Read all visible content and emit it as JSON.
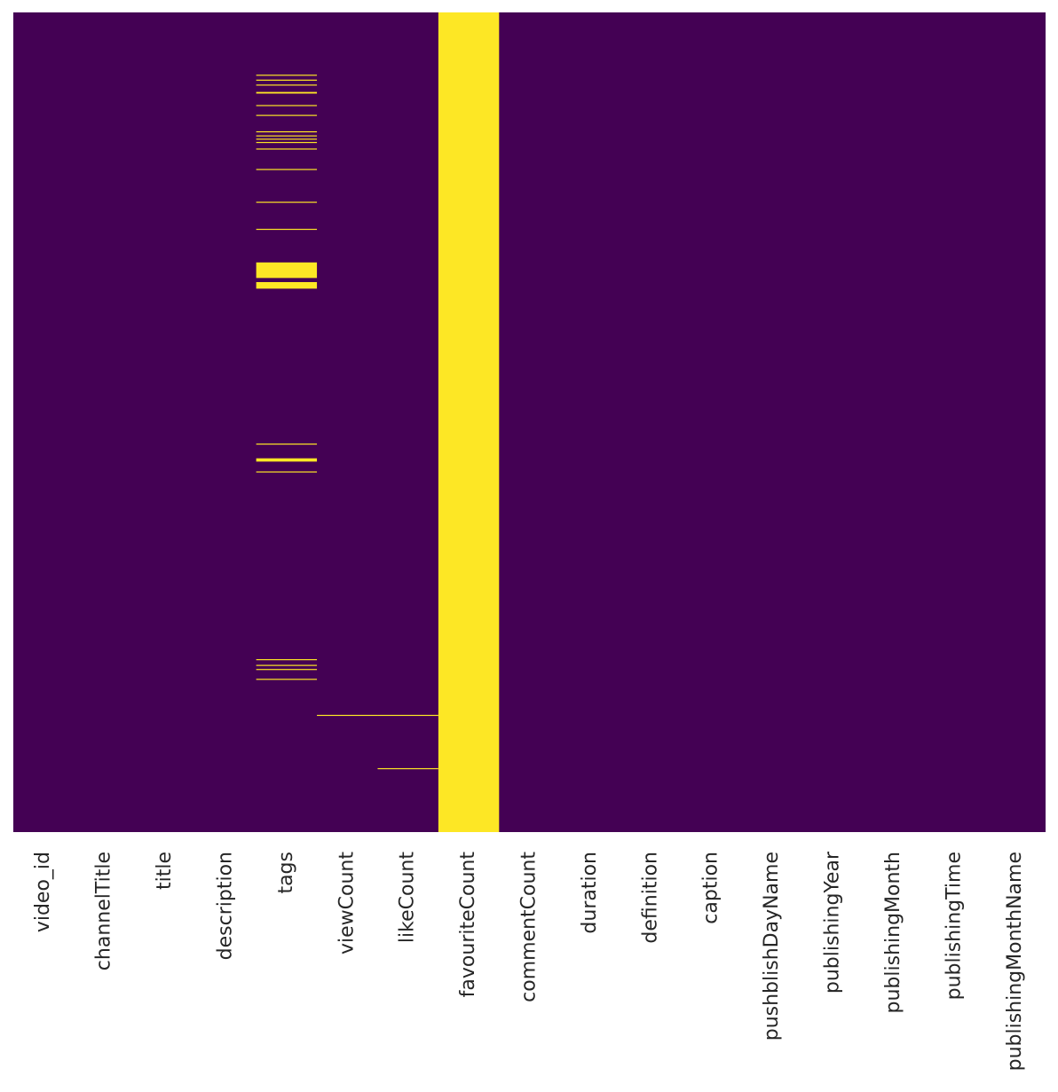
{
  "chart_data": {
    "type": "heatmap",
    "title": "",
    "xlabel": "",
    "ylabel": "",
    "colormap": "viridis",
    "value_colors": {
      "present": "#440154",
      "missing": "#fde725"
    },
    "grid": false,
    "legend": "none",
    "columns": [
      "video_id",
      "channelTitle",
      "title",
      "description",
      "tags",
      "viewCount",
      "likeCount",
      "favouriteCount",
      "commentCount",
      "duration",
      "definition",
      "caption",
      "pushblishDayName",
      "publishingYear",
      "publishingMonth",
      "publishingTime",
      "publishingMonthName"
    ],
    "rows_approx": 1000,
    "missing_row_ranges": {
      "tags": [
        [
          76,
          77
        ],
        [
          82,
          83
        ],
        [
          88,
          89
        ],
        [
          97,
          99
        ],
        [
          113,
          114
        ],
        [
          125,
          126
        ],
        [
          145,
          146
        ],
        [
          150,
          151
        ],
        [
          154,
          155
        ],
        [
          158,
          159
        ],
        [
          166,
          167
        ],
        [
          191,
          192
        ],
        [
          231,
          232
        ],
        [
          264,
          265
        ],
        [
          305,
          324
        ],
        [
          329,
          337
        ],
        [
          526,
          527
        ],
        [
          544,
          548
        ],
        [
          560,
          561
        ],
        [
          789,
          790
        ],
        [
          796,
          797
        ],
        [
          801,
          802
        ],
        [
          813,
          814
        ]
      ],
      "viewCount": [
        [
          857,
          858
        ]
      ],
      "likeCount": [
        [
          857,
          858
        ],
        [
          922,
          923
        ]
      ],
      "favouriteCount": [
        [
          0,
          1000
        ]
      ]
    }
  }
}
